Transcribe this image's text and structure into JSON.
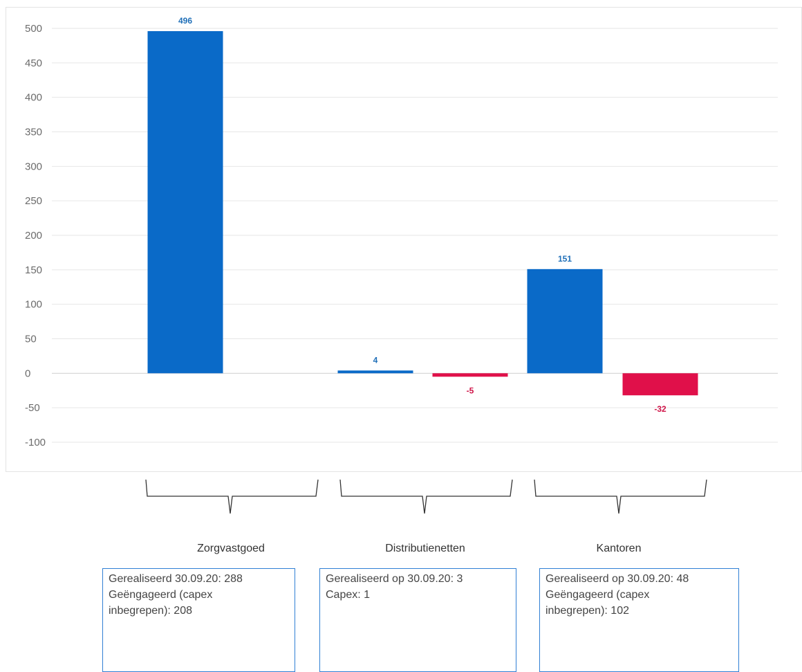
{
  "chart_data": {
    "type": "bar",
    "categories": [
      "Zorgvastgoed positive",
      "Zorgvastgoed negative",
      "Distributienetten positive",
      "Distributienetten negative",
      "Kantoren positive",
      "Kantoren negative"
    ],
    "values": [
      496,
      null,
      4,
      -5,
      151,
      -32
    ],
    "data_labels": [
      "496",
      "",
      "4",
      "-5",
      "151",
      "-32"
    ],
    "ylim": [
      -100,
      500
    ],
    "yticks": [
      500,
      450,
      400,
      350,
      300,
      250,
      200,
      150,
      100,
      50,
      0,
      -50,
      -100
    ],
    "grid": true,
    "colors": {
      "positive": "#0a6ac8",
      "negative": "#e0104a"
    }
  },
  "groups": [
    {
      "title": "Zorgvastgoed",
      "info": [
        "Gerealiseerd 30.09.20: 288",
        "Geëngageerd (capex",
        "inbegrepen): 208"
      ]
    },
    {
      "title": "Distributienetten",
      "info": [
        "Gerealiseerd op 30.09.20: 3",
        "Capex: 1"
      ]
    },
    {
      "title": "Kantoren",
      "info": [
        "Gerealiseerd op 30.09.20: 48",
        "Geëngageerd (capex",
        "inbegrepen): 102"
      ]
    }
  ]
}
